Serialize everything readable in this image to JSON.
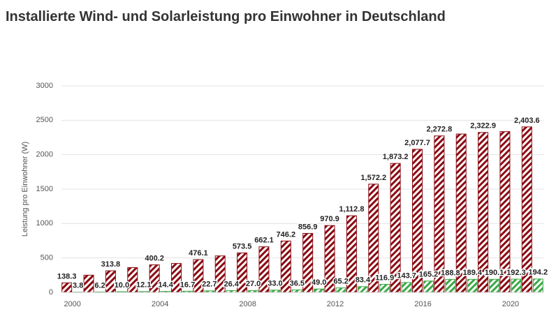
{
  "chart_data": {
    "type": "bar",
    "title": "Installierte Wind- und Solarleistung pro Einwohner in Deutschland",
    "y_label": "Leistung pro Einwohner (W)",
    "x": [
      2000,
      2001,
      2002,
      2003,
      2004,
      2005,
      2006,
      2007,
      2008,
      2009,
      2010,
      2011,
      2012,
      2013,
      2014,
      2015,
      2016,
      2017,
      2018,
      2019,
      2020,
      2021
    ],
    "series": [
      {
        "color": "#8b0a12",
        "hatch": true,
        "values": [
          138.3,
          250,
          313.8,
          360,
          400.2,
          420,
          476.1,
          530,
          573.5,
          662.1,
          746.2,
          856.9,
          970.9,
          1112.8,
          1572.2,
          1873.2,
          2077.7,
          2272.8,
          2300,
          2322.9,
          2335,
          2403.6
        ],
        "value_labels": [
          "138.3",
          null,
          "313.8",
          null,
          "400.2",
          null,
          "476.1",
          null,
          "573.5",
          "662.1",
          "746.2",
          "856.9",
          "970.9",
          "1,112.8",
          "1,572.2",
          "1,873.2",
          "2,077.7",
          "2,272.8",
          null,
          "2,322.9",
          null,
          "2,403.6"
        ]
      },
      {
        "color": "#3aa845",
        "hatch": true,
        "values": [
          3.8,
          6.2,
          10.0,
          12.1,
          14.4,
          16.7,
          22.7,
          26.4,
          27.0,
          33.0,
          36.5,
          49.0,
          65.2,
          83.4,
          116.9,
          143.7,
          165.2,
          188.8,
          189.4,
          190.1,
          192.3,
          194.2
        ],
        "value_labels": [
          "3.8",
          "6.2",
          "10.0",
          "12.1",
          "14.4",
          "16.7",
          "22.7",
          "26.4",
          "27.0",
          "33.0",
          "36.5",
          "49.0",
          "65.2",
          "83.4",
          "116.9",
          "143.7",
          "165.2",
          "188.8",
          "189.4",
          "190.1",
          "192.3",
          "194.2"
        ]
      }
    ],
    "xlim": [
      1999.5,
      2021.5
    ],
    "xticks": [
      2000,
      2004,
      2008,
      2012,
      2016,
      2020
    ],
    "ylim": [
      0,
      3000
    ],
    "yticks": [
      0,
      500,
      1000,
      1500,
      2000,
      2500,
      3000
    ],
    "grid": true
  }
}
